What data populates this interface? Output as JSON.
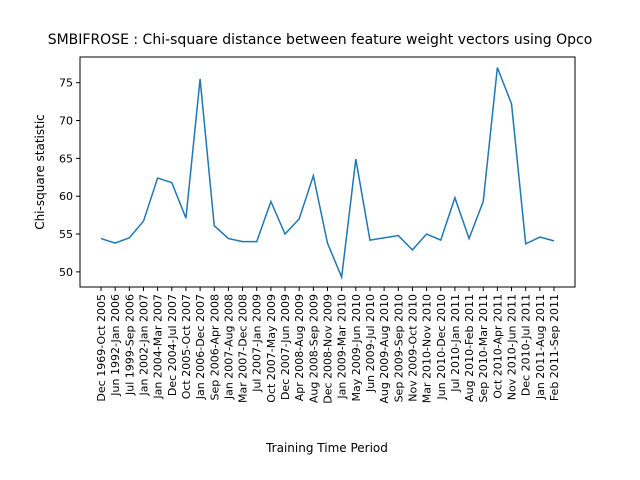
{
  "chart_data": {
    "type": "line",
    "title": "SMBIFROSE : Chi-square distance between feature weight vectors using Opco",
    "x_label": "Training Time Period",
    "y_label": "Chi-square statistic",
    "categories": [
      "Dec 1969-Oct 2005",
      "Jun 1992-Jan 2006",
      "Jul 1999-Sep 2006",
      "Jan 2002-Jan 2007",
      "Jan 2004-Mar 2007",
      "Dec 2004-Jul 2007",
      "Oct 2005-Oct 2007",
      "Jan 2006-Dec 2007",
      "Sep 2006-Apr 2008",
      "Jan 2007-Aug 2008",
      "Mar 2007-Dec 2008",
      "Jul 2007-Jan 2009",
      "Oct 2007-May 2009",
      "Dec 2007-Jun 2009",
      "Apr 2008-Aug 2009",
      "Aug 2008-Sep 2009",
      "Dec 2008-Nov 2009",
      "Jan 2009-Mar 2010",
      "May 2009-Jun 2010",
      "Jun 2009-Jul 2010",
      "Aug 2009-Aug 2010",
      "Sep 2009-Sep 2010",
      "Nov 2009-Oct 2010",
      "Mar 2010-Nov 2010",
      "Jun 2010-Dec 2010",
      "Jul 2010-Jan 2011",
      "Aug 2010-Feb 2011",
      "Sep 2010-Mar 2011",
      "Oct 2010-Apr 2011",
      "Nov 2010-Jun 2011",
      "Dec 2010-Jul 2011",
      "Jan 2011-Aug 2011",
      "Feb 2011-Sep 2011"
    ],
    "values": [
      54.4,
      53.8,
      54.5,
      56.7,
      62.4,
      61.8,
      57.1,
      75.5,
      56.1,
      54.4,
      54.0,
      54.0,
      59.3,
      55.0,
      57.0,
      62.7,
      53.8,
      49.3,
      64.9,
      54.2,
      54.5,
      54.8,
      52.9,
      55.0,
      54.2,
      59.8,
      54.4,
      59.3,
      77.0,
      72.2,
      53.7,
      54.6,
      54.1
    ],
    "color": "#1f77b4",
    "ylim": [
      48.0,
      78.4
    ],
    "yticks": [
      50,
      55,
      60,
      65,
      70,
      75
    ]
  }
}
